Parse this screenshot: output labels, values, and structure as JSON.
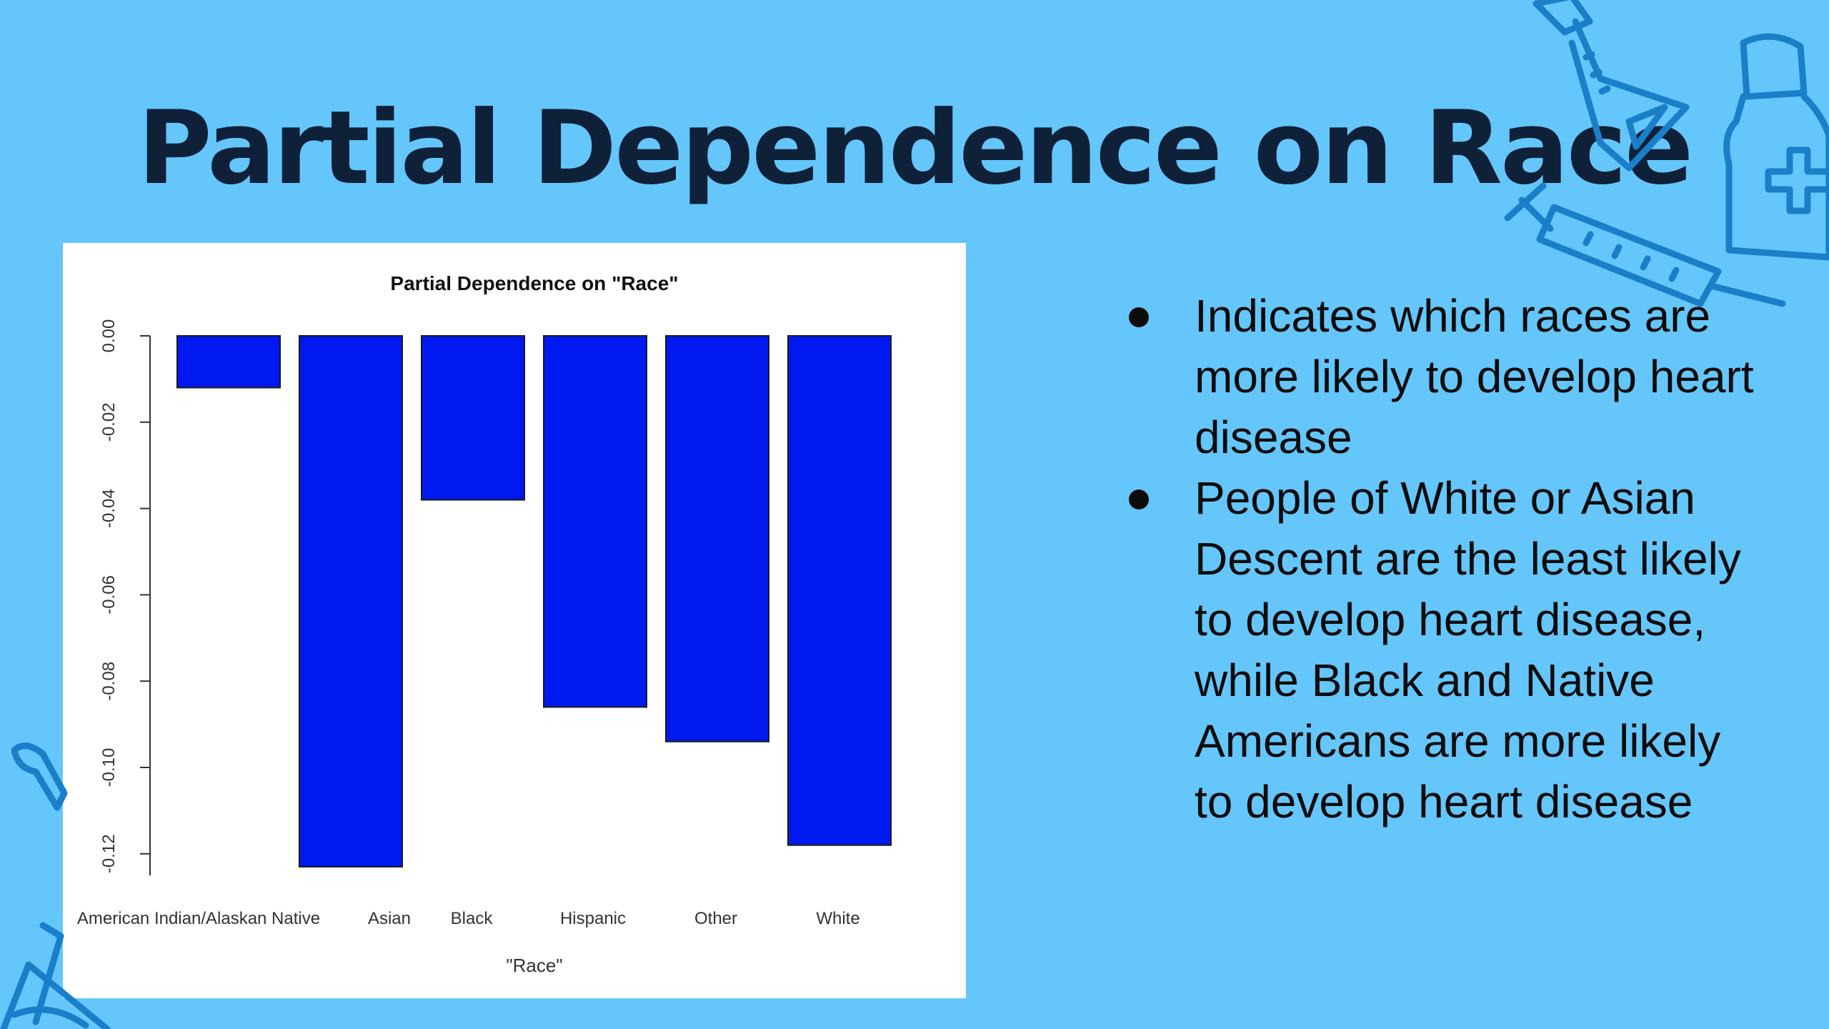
{
  "slide": {
    "title": "Partial Dependence on Race",
    "bullets": [
      "Indicates which races are more likely to develop heart disease",
      "People of White or Asian Descent are the least likely to develop heart disease, while Black and Native Americans are more likely to develop heart disease"
    ],
    "decorations": [
      "flask-icon",
      "medicine-bottle-icon",
      "syringe-icon",
      "pipette-icon",
      "beaker-icon"
    ]
  },
  "colors": {
    "background": "#64c6fb",
    "bar_fill": "#0019f0",
    "title": "#0e2138"
  },
  "chart_data": {
    "type": "bar",
    "title": "Partial Dependence on \"Race\"",
    "xlabel": "\"Race\"",
    "ylabel": "",
    "categories": [
      "American Indian/Alaskan Native",
      "Asian",
      "Black",
      "Hispanic",
      "Other",
      "White"
    ],
    "values": [
      -0.012,
      -0.123,
      -0.038,
      -0.086,
      -0.094,
      -0.118
    ],
    "ylim": [
      -0.125,
      0
    ],
    "yticks": [
      0.0,
      -0.02,
      -0.04,
      -0.06,
      -0.08,
      -0.1,
      -0.12
    ],
    "ytick_labels": [
      "0.00",
      "-0.02",
      "-0.04",
      "-0.06",
      "-0.08",
      "-0.10",
      "-0.12"
    ],
    "grid": false,
    "legend": "none"
  }
}
